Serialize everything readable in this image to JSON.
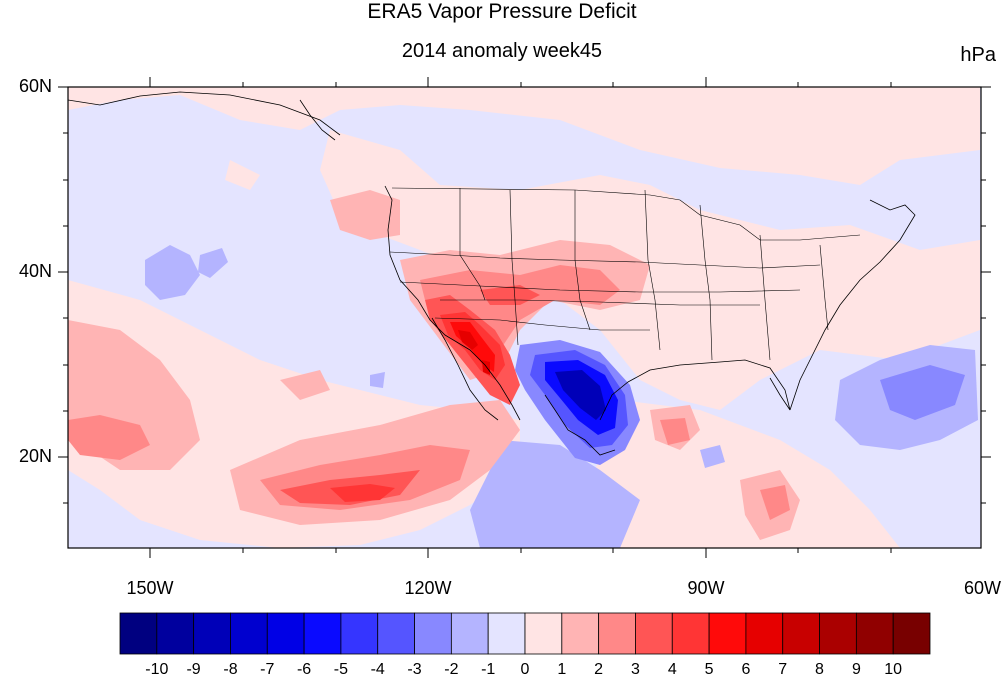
{
  "title": "ERA5 Vapor Pressure Deficit",
  "subtitle": "2014 anomaly week45",
  "units": "hPa",
  "map": {
    "extent_lon": [
      -160,
      -60
    ],
    "extent_lat": [
      10,
      60
    ],
    "lat_ticks": [
      "60N",
      "40N",
      "20N"
    ],
    "lon_ticks": [
      "150W",
      "120W",
      "90W",
      "60W"
    ],
    "projection": "cylindrical-equidistant",
    "overlays": [
      "coastlines",
      "US state boundaries",
      "country borders"
    ]
  },
  "colorbar": {
    "labels": [
      "-10",
      "-9",
      "-8",
      "-7",
      "-6",
      "-5",
      "-4",
      "-3",
      "-2",
      "-1",
      "0",
      "1",
      "2",
      "3",
      "4",
      "5",
      "6",
      "7",
      "8",
      "9",
      "10"
    ],
    "colors": [
      "#000080",
      "#00009e",
      "#0000b8",
      "#0000cf",
      "#0000e6",
      "#0a0aff",
      "#3535ff",
      "#5555ff",
      "#8888ff",
      "#b4b4ff",
      "#e4e4ff",
      "#ffe4e4",
      "#ffb4b4",
      "#ff8888",
      "#ff5555",
      "#ff3535",
      "#ff0a0a",
      "#e60000",
      "#c80000",
      "#aa0000",
      "#900000",
      "#780000"
    ]
  }
}
